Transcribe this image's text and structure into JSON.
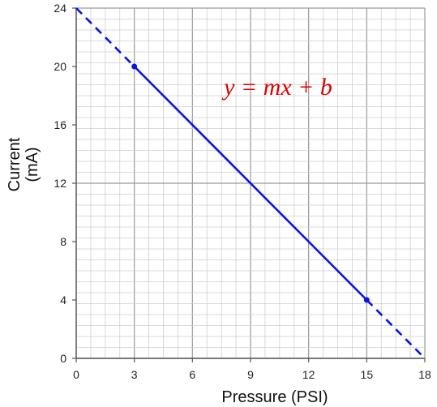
{
  "chart_data": {
    "type": "line",
    "xlabel": "Pressure (PSI)",
    "ylabel_lines": [
      "Current",
      "(mA)"
    ],
    "xlim": [
      0,
      18
    ],
    "ylim": [
      0,
      24
    ],
    "x_ticks": [
      "0",
      "3",
      "6",
      "9",
      "12",
      "15",
      "18"
    ],
    "y_ticks": [
      "0",
      "4",
      "8",
      "12",
      "16",
      "20",
      "24"
    ],
    "grid": true,
    "grid_minor_step": 0.75,
    "grid_major_step_x": 3,
    "grid_major_step_y": 4,
    "line_color": "#0a14e6",
    "annotation_color": "#e00000",
    "annotation": "y = mx + b",
    "solid_segment": {
      "x": [
        3,
        15
      ],
      "y": [
        20,
        4
      ]
    },
    "dashed_extensions": [
      {
        "x": [
          0,
          3
        ],
        "y": [
          24,
          20
        ]
      },
      {
        "x": [
          15,
          18
        ],
        "y": [
          4,
          0
        ]
      }
    ],
    "points": [
      {
        "x": 3,
        "y": 20
      },
      {
        "x": 15,
        "y": 4
      }
    ]
  }
}
